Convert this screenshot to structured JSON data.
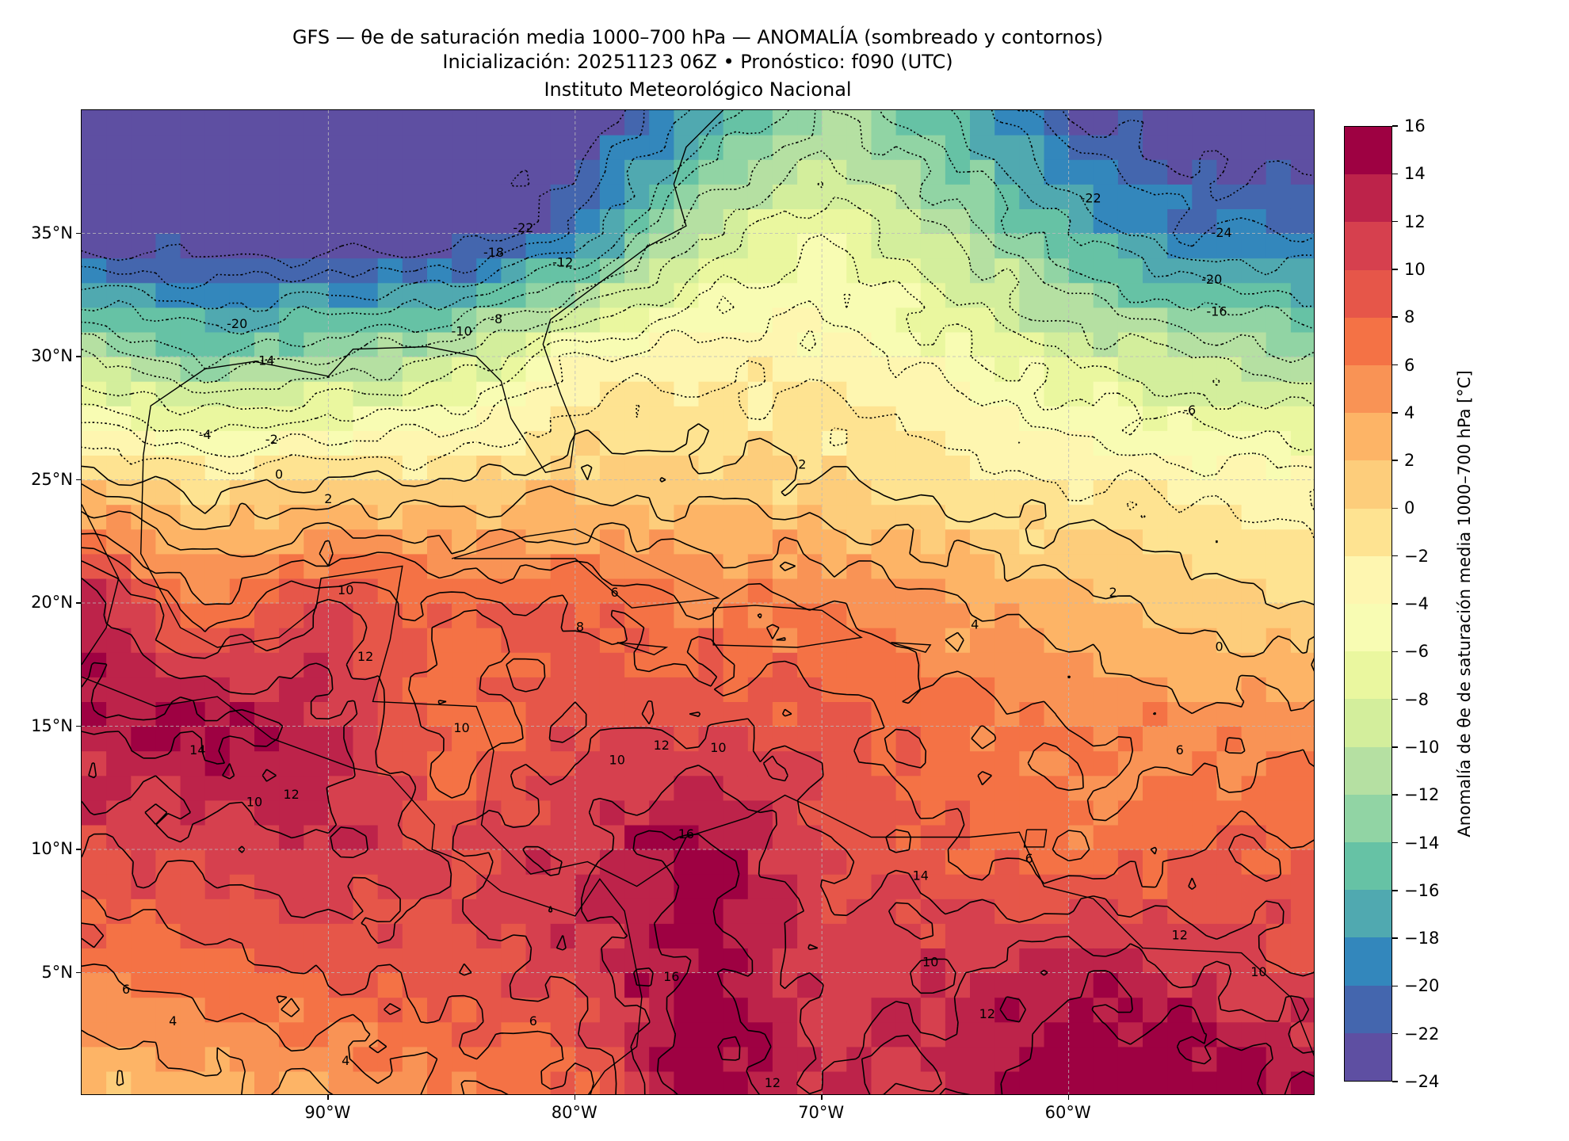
{
  "title": {
    "line1": "GFS — θe de saturación media 1000–700 hPa — ANOMALÍA (sombreado y contornos)",
    "line2": "Inicialización: 20251123 06Z   •   Pronóstico: f090 (UTC)",
    "line3": "Instituto Meteorológico Nacional"
  },
  "chart_data": {
    "type": "heatmap",
    "title": "GFS — θe de saturación media 1000–700 hPa — ANOMALÍA (sombreado y contornos)",
    "xlabel": "",
    "ylabel": "",
    "xlim": [
      -100,
      -50
    ],
    "ylim": [
      0,
      40
    ],
    "grid": true,
    "x_ticks": [
      {
        "value": -90,
        "label": "90°W"
      },
      {
        "value": -80,
        "label": "80°W"
      },
      {
        "value": -70,
        "label": "70°W"
      },
      {
        "value": -60,
        "label": "60°W"
      }
    ],
    "y_ticks": [
      {
        "value": 5,
        "label": "5°N"
      },
      {
        "value": 10,
        "label": "10°N"
      },
      {
        "value": 15,
        "label": "15°N"
      },
      {
        "value": 20,
        "label": "20°N"
      },
      {
        "value": 25,
        "label": "25°N"
      },
      {
        "value": 30,
        "label": "30°N"
      },
      {
        "value": 35,
        "label": "35°N"
      }
    ],
    "grid_lons": [
      -100,
      -95,
      -90,
      -85,
      -80,
      -75,
      -70,
      -65,
      -60,
      -55,
      -50
    ],
    "grid_lats": [
      40,
      35,
      30,
      25,
      20,
      15,
      10,
      5,
      0
    ],
    "values": [
      [
        -24,
        -24,
        -24,
        -24,
        -24,
        -18,
        -12,
        -16,
        -22,
        -24,
        -24
      ],
      [
        -24,
        -24,
        -24,
        -24,
        -20,
        -10,
        -6,
        -10,
        -16,
        -20,
        -20
      ],
      [
        -10,
        -14,
        -12,
        -10,
        -4,
        -3,
        -3,
        -5,
        -8,
        -10,
        -12
      ],
      [
        1,
        -1,
        0,
        0,
        1,
        1,
        0,
        -1,
        -2,
        -3,
        -3
      ],
      [
        14,
        6,
        10,
        8,
        8,
        6,
        6,
        4,
        3,
        1,
        0
      ],
      [
        14,
        15,
        13,
        6,
        10,
        10,
        9,
        7,
        6,
        5,
        5
      ],
      [
        10,
        11,
        12,
        10,
        12,
        15,
        10,
        8,
        6,
        8,
        8
      ],
      [
        6,
        7,
        8,
        9,
        11,
        15,
        11,
        12,
        14,
        12,
        10
      ],
      [
        2,
        3,
        4,
        6,
        7,
        16,
        12,
        12,
        16,
        16,
        14
      ]
    ],
    "contour_levels_step": 2,
    "contour_labels": [
      {
        "lon": -92,
        "lat": 25.2,
        "text": "0"
      },
      {
        "lon": -90,
        "lat": 24.2,
        "text": "2"
      },
      {
        "lon": -95,
        "lat": 26.8,
        "text": "-4"
      },
      {
        "lon": -92.3,
        "lat": 26.6,
        "text": "-2"
      },
      {
        "lon": -93.7,
        "lat": 31.3,
        "text": "-20"
      },
      {
        "lon": -92.6,
        "lat": 29.8,
        "text": "-14"
      },
      {
        "lon": -84.6,
        "lat": 31.0,
        "text": "-10"
      },
      {
        "lon": -83.2,
        "lat": 31.5,
        "text": "-8"
      },
      {
        "lon": -83.3,
        "lat": 34.2,
        "text": "-18"
      },
      {
        "lon": -82.1,
        "lat": 35.2,
        "text": "-22"
      },
      {
        "lon": -80.5,
        "lat": 33.8,
        "text": "-12"
      },
      {
        "lon": -59.1,
        "lat": 36.4,
        "text": "-22"
      },
      {
        "lon": -53.8,
        "lat": 35.0,
        "text": "-24"
      },
      {
        "lon": -54.2,
        "lat": 33.1,
        "text": "-20"
      },
      {
        "lon": -54.0,
        "lat": 31.8,
        "text": "-16"
      },
      {
        "lon": -55.1,
        "lat": 27.8,
        "text": "-6"
      },
      {
        "lon": -70.8,
        "lat": 25.6,
        "text": "2"
      },
      {
        "lon": -58.2,
        "lat": 20.4,
        "text": "2"
      },
      {
        "lon": -63.8,
        "lat": 19.1,
        "text": "4"
      },
      {
        "lon": -53.9,
        "lat": 18.2,
        "text": "0"
      },
      {
        "lon": -89.3,
        "lat": 20.5,
        "text": "10"
      },
      {
        "lon": -88.5,
        "lat": 17.8,
        "text": "12"
      },
      {
        "lon": -84.6,
        "lat": 14.9,
        "text": "10"
      },
      {
        "lon": -79.8,
        "lat": 19.0,
        "text": "8"
      },
      {
        "lon": -78.4,
        "lat": 20.4,
        "text": "6"
      },
      {
        "lon": -74.2,
        "lat": 14.1,
        "text": "10"
      },
      {
        "lon": -76.5,
        "lat": 14.2,
        "text": "12"
      },
      {
        "lon": -78.3,
        "lat": 13.6,
        "text": "10"
      },
      {
        "lon": -93.0,
        "lat": 11.9,
        "text": "10"
      },
      {
        "lon": -91.5,
        "lat": 12.2,
        "text": "12"
      },
      {
        "lon": -95.3,
        "lat": 14.0,
        "text": "14"
      },
      {
        "lon": -75.5,
        "lat": 10.6,
        "text": "16"
      },
      {
        "lon": -66.0,
        "lat": 8.9,
        "text": "14"
      },
      {
        "lon": -65.6,
        "lat": 5.4,
        "text": "10"
      },
      {
        "lon": -63.3,
        "lat": 3.3,
        "text": "12"
      },
      {
        "lon": -76.1,
        "lat": 4.8,
        "text": "16"
      },
      {
        "lon": -98.2,
        "lat": 4.3,
        "text": "6"
      },
      {
        "lon": -96.3,
        "lat": 3.0,
        "text": "4"
      },
      {
        "lon": -89.3,
        "lat": 1.4,
        "text": "4"
      },
      {
        "lon": -81.7,
        "lat": 3.0,
        "text": "6"
      },
      {
        "lon": -72.0,
        "lat": 0.5,
        "text": "12"
      },
      {
        "lon": -55.5,
        "lat": 6.5,
        "text": "12"
      },
      {
        "lon": -52.3,
        "lat": 5.0,
        "text": "10"
      },
      {
        "lon": -55.5,
        "lat": 14.0,
        "text": "6"
      },
      {
        "lon": -61.6,
        "lat": 9.6,
        "text": "6"
      }
    ],
    "colorbar": {
      "label": "Anomalía de θe de saturación media 1000–700 hPa [°C]",
      "levels": [
        -24,
        -22,
        -20,
        -18,
        -16,
        -14,
        -12,
        -10,
        -8,
        -6,
        -4,
        -2,
        0,
        2,
        4,
        6,
        8,
        10,
        12,
        14,
        16
      ],
      "tick_labels": [
        "−24",
        "−22",
        "−20",
        "−18",
        "−16",
        "−14",
        "−12",
        "−10",
        "−8",
        "−6",
        "−4",
        "−2",
        "0",
        "2",
        "4",
        "6",
        "8",
        "10",
        "12",
        "14",
        "16"
      ],
      "colors": [
        "#5e4fa2",
        "#4466ae",
        "#3387bc",
        "#50a9b0",
        "#66c2a5",
        "#91d4a4",
        "#b5e0a2",
        "#d3ee9c",
        "#eaf79f",
        "#f8fcb3",
        "#fef6b0",
        "#fee391",
        "#fdcd7b",
        "#fdb466",
        "#f99355",
        "#f47245",
        "#e65649",
        "#d6404e",
        "#bd234a",
        "#9e0142"
      ]
    }
  }
}
